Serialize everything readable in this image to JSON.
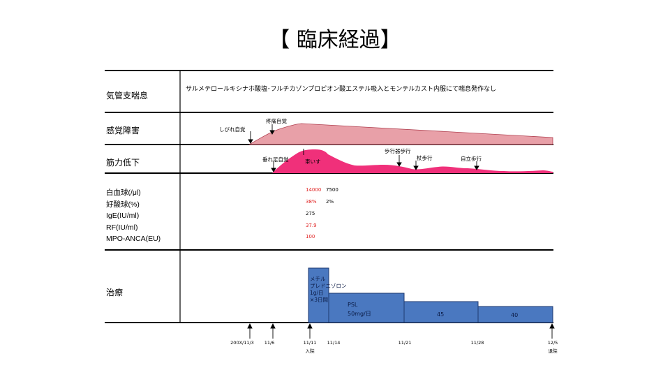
{
  "title": "【 臨床経過】",
  "rows": {
    "asthma": "気管支喘息",
    "sensory": "感覚障害",
    "weakness": "筋力低下",
    "treatment": "治療"
  },
  "asthma_text": "サルメテロールキシナホ酸塩･フルチカゾンプロピオン酸エステル吸入とモンテルカスト内服にて喘息発作なし",
  "sensory_notes": {
    "numbness": "しびれ自覚",
    "pain": "疼痛自覚"
  },
  "weakness_notes": {
    "drop_foot": "垂れ足自覚",
    "wheelchair": "車いす",
    "walker": "歩行器歩行",
    "cane": "杖歩行",
    "independent": "自立歩行"
  },
  "labs": {
    "labels": [
      "白血球(/μl)",
      "好酸球(%)",
      "IgE(IU/ml)",
      "RF(IU/ml)",
      "MPO-ANCA(EU)"
    ],
    "col1": [
      "14000",
      "38%",
      "275",
      "37.9",
      "100"
    ],
    "col1_colors": [
      "#e02020",
      "#e02020",
      "#000000",
      "#e02020",
      "#e02020"
    ],
    "col2": [
      "7500",
      "2%",
      "",
      "",
      ""
    ]
  },
  "treatment": {
    "pulse_lines": [
      "メチル",
      "プレドニゾロン",
      "1g/日",
      "×3日間"
    ],
    "psl_lines": [
      "PSL",
      "50mg/日"
    ],
    "dose2": "45",
    "dose3": "40"
  },
  "timeline": {
    "labels": [
      "200X/11/3",
      "11/6",
      "11/11",
      "11/14",
      "11/21",
      "11/28",
      "12/5"
    ],
    "admission": "入院",
    "discharge": "退院"
  },
  "colors": {
    "sensory_fill": "#e8a0a8",
    "sensory_stroke": "#b04050",
    "weakness_fill": "#f0307a",
    "treatment_fill": "#4a78c0",
    "treatment_stroke": "#1f3a70",
    "abnormal_value": "#e02020"
  }
}
